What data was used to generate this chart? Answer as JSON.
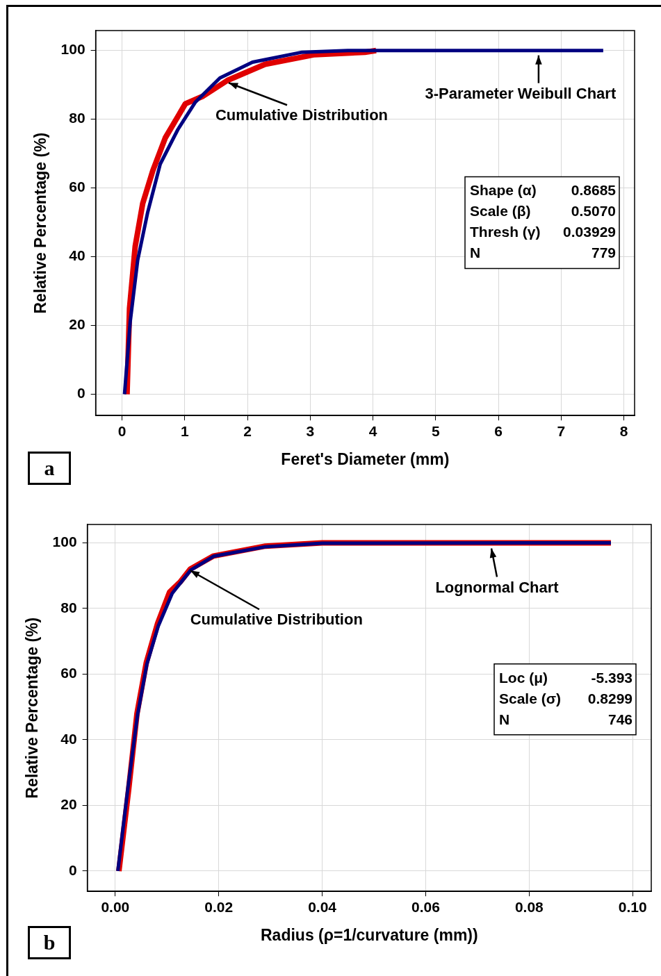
{
  "chart_data": [
    {
      "type": "line",
      "title": "a",
      "xlabel": "Feret's Diameter (mm)",
      "ylabel": "Relative Percentage (%)",
      "xlim": [
        -0.42,
        8.17
      ],
      "xticks": [
        0,
        1,
        2,
        3,
        4,
        5,
        6,
        7,
        8
      ],
      "ylim": [
        -6.2,
        105.8
      ],
      "yticks": [
        0,
        20,
        40,
        60,
        80,
        100
      ],
      "grid": true,
      "marker": "none",
      "line_style": "solid",
      "series": [
        {
          "color": "#e00000",
          "x": [
            0.08,
            0.12,
            0.21,
            0.33,
            0.49,
            0.69,
            1.01,
            1.29,
            1.68,
            2.28,
            3.07,
            3.87,
            4.05
          ],
          "values": [
            0,
            25,
            43,
            55.5,
            65,
            74.6,
            84.5,
            86.7,
            91.3,
            96,
            98.8,
            99.5,
            100
          ]
        },
        {
          "color": "#000080",
          "x": [
            0.04,
            0.13,
            0.25,
            0.41,
            0.61,
            0.89,
            1.17,
            1.56,
            2.08,
            2.87,
            3.6,
            7.67
          ],
          "values": [
            0,
            21,
            39,
            53,
            67,
            77,
            85,
            92,
            96.6,
            99.5,
            100,
            100
          ]
        }
      ],
      "annotations": [
        {
          "text": "Cumulative Distribution",
          "x": 1.7,
          "y": 91
        },
        {
          "text": "3-Parameter Weibull Chart",
          "x": 6.64,
          "y": 99
        },
        "Shape (α) 0.8685",
        "Scale (β) 0.5070",
        "Thresh (γ) 0.03929",
        "N 779"
      ]
    },
    {
      "type": "line",
      "title": "b",
      "xlabel": "Radius (ρ=1/curvature (mm))",
      "ylabel": "Relative Percentage (%)",
      "xlim": [
        -0.0054,
        0.1036
      ],
      "xticks": [
        {
          "value": 0,
          "label": "0.00"
        },
        {
          "value": 0.02,
          "label": "0.02"
        },
        {
          "value": 0.04,
          "label": "0.04"
        },
        {
          "value": 0.06,
          "label": "0.06"
        },
        {
          "value": 0.08,
          "label": "0.08"
        },
        {
          "value": 0.1,
          "label": "0.10"
        }
      ],
      "ylim": [
        -6.2,
        105.6
      ],
      "yticks": [
        0,
        20,
        40,
        60,
        80,
        100
      ],
      "grid": true,
      "marker": "none",
      "line_style": "solid",
      "series": [
        {
          "color": "#e00000",
          "x": [
            0.0007,
            0.0026,
            0.0042,
            0.006,
            0.0082,
            0.0105,
            0.0125,
            0.0145,
            0.019,
            0.029,
            0.04,
            0.0958
          ],
          "values": [
            0,
            25,
            48,
            63.5,
            75.5,
            85,
            88,
            92,
            96,
            99,
            100,
            100
          ]
        },
        {
          "color": "#000080",
          "x": [
            0.0005,
            0.0025,
            0.0043,
            0.0061,
            0.0083,
            0.011,
            0.0146,
            0.019,
            0.029,
            0.04,
            0.0958
          ],
          "values": [
            0,
            26,
            47.5,
            63,
            74.6,
            84.6,
            91.7,
            95.9,
            98.8,
            99.9,
            100
          ]
        }
      ],
      "annotations": [
        {
          "text": "Cumulative Distribution",
          "x": 0.0145,
          "y": 92
        },
        {
          "text": "Lognormal Chart",
          "x": 0.0727,
          "y": 98.7
        },
        "Loc (μ) -5.393",
        "Scale (σ) 0.8299",
        "N 746"
      ]
    }
  ]
}
